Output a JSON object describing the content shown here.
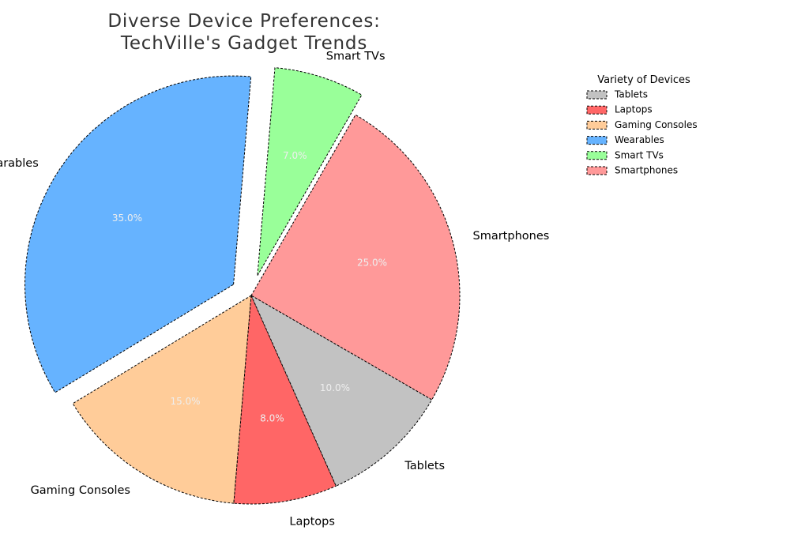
{
  "chart_data": {
    "type": "pie",
    "title": "Diverse Device Preferences:\nTechVille's Gadget Trends",
    "categories": [
      "Smartphones",
      "Smart TVs",
      "Wearables",
      "Gaming Consoles",
      "Laptops",
      "Tablets"
    ],
    "values": [
      25,
      7,
      35,
      15,
      8,
      10
    ],
    "percent_labels": [
      "25.0%",
      "7.0%",
      "35.0%",
      "15.0%",
      "8.0%",
      "10.0%"
    ],
    "colors": [
      "#ff9999",
      "#99ff99",
      "#66b3ff",
      "#ffcc99",
      "#ff6666",
      "#c2c2c2"
    ],
    "exploded": [
      "Smart TVs",
      "Wearables"
    ],
    "slice_edge": "dashed black",
    "legend": {
      "title": "Variety of Devices",
      "placement": "upper-right",
      "entries": [
        "Tablets",
        "Laptops",
        "Gaming Consoles",
        "Wearables",
        "Smart TVs",
        "Smartphones"
      ]
    }
  }
}
